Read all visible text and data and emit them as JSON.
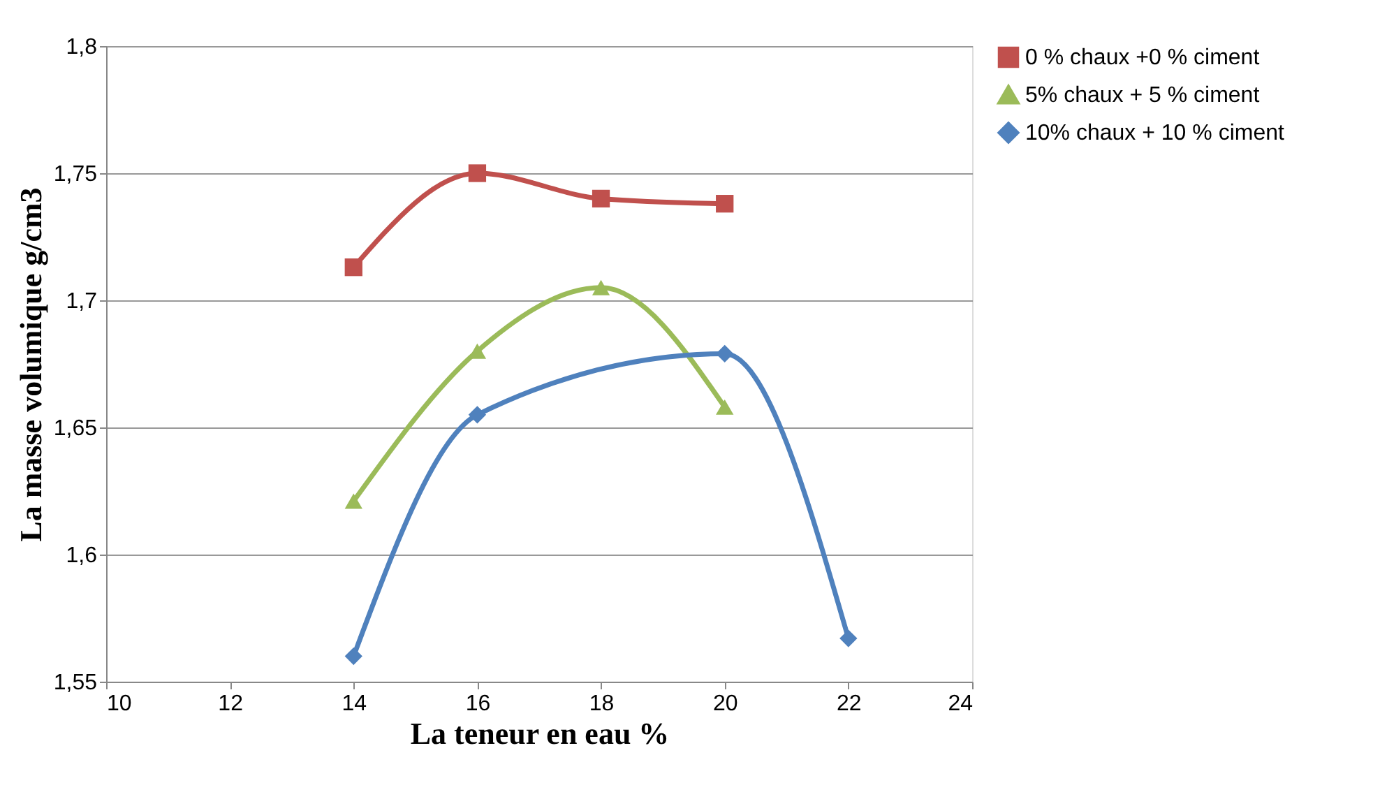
{
  "chart_data": {
    "type": "line",
    "xlabel": "La teneur en eau %",
    "ylabel": "La masse volumique g/cm3",
    "xlim": [
      10,
      24
    ],
    "xticks": [
      10,
      12,
      14,
      16,
      18,
      20,
      22,
      24
    ],
    "ylim": [
      1.55,
      1.8
    ],
    "yticks": [
      {
        "value": 1.55,
        "label": "1,55"
      },
      {
        "value": 1.6,
        "label": "1,6"
      },
      {
        "value": 1.65,
        "label": "1,65"
      },
      {
        "value": 1.7,
        "label": "1,7"
      },
      {
        "value": 1.75,
        "label": "1,75"
      },
      {
        "value": 1.8,
        "label": "1,8"
      }
    ],
    "grid": "y",
    "legend": "right",
    "series": [
      {
        "name": "0 % chaux +0 % ciment",
        "color": "#c0504d",
        "marker": "square",
        "x": [
          14,
          16,
          18,
          20
        ],
        "values": [
          1.713,
          1.75,
          1.74,
          1.738
        ]
      },
      {
        "name": "5% chaux + 5 % ciment",
        "color": "#9bbb59",
        "marker": "triangle",
        "x": [
          14,
          16,
          18,
          20
        ],
        "values": [
          1.621,
          1.68,
          1.705,
          1.658
        ]
      },
      {
        "name": "10% chaux + 10 % ciment",
        "color": "#4f81bd",
        "marker": "diamond",
        "x": [
          14,
          16,
          20,
          22
        ],
        "values": [
          1.56,
          1.655,
          1.679,
          1.567
        ]
      }
    ]
  }
}
